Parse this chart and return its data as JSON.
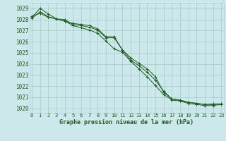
{
  "title": "Graphe pression niveau de la mer (hPa)",
  "bg_color": "#cce8ea",
  "grid_color": "#a8cfd2",
  "line_color": "#1a5c1a",
  "x_ticks": [
    0,
    1,
    2,
    3,
    4,
    5,
    6,
    7,
    8,
    9,
    10,
    11,
    12,
    13,
    14,
    15,
    16,
    17,
    18,
    19,
    20,
    21,
    22,
    23
  ],
  "y_ticks": [
    1020,
    1021,
    1022,
    1023,
    1024,
    1025,
    1026,
    1027,
    1028,
    1029
  ],
  "ylim": [
    1019.6,
    1029.5
  ],
  "xlim": [
    -0.3,
    23.3
  ],
  "series": [
    [
      1028.3,
      1028.55,
      1028.2,
      1028.05,
      1028.0,
      1027.55,
      1027.45,
      1027.3,
      1027.05,
      1026.35,
      1026.35,
      1025.25,
      1024.35,
      1023.85,
      1023.25,
      1022.55,
      1021.55,
      1020.85,
      1020.7,
      1020.55,
      1020.45,
      1020.35,
      1020.4,
      1020.4
    ],
    [
      1028.2,
      1029.0,
      1028.5,
      1028.05,
      1027.85,
      1027.65,
      1027.55,
      1027.45,
      1027.15,
      1026.45,
      1026.45,
      1025.25,
      1024.55,
      1024.05,
      1023.55,
      1022.85,
      1021.45,
      1020.85,
      1020.75,
      1020.55,
      1020.45,
      1020.35,
      1020.35,
      1020.4
    ],
    [
      1028.1,
      1028.7,
      1028.25,
      1028.05,
      1027.85,
      1027.45,
      1027.25,
      1027.05,
      1026.75,
      1026.05,
      1025.35,
      1025.05,
      1024.25,
      1023.55,
      1022.85,
      1022.05,
      1021.25,
      1020.75,
      1020.65,
      1020.45,
      1020.35,
      1020.25,
      1020.25,
      1020.35
    ]
  ]
}
